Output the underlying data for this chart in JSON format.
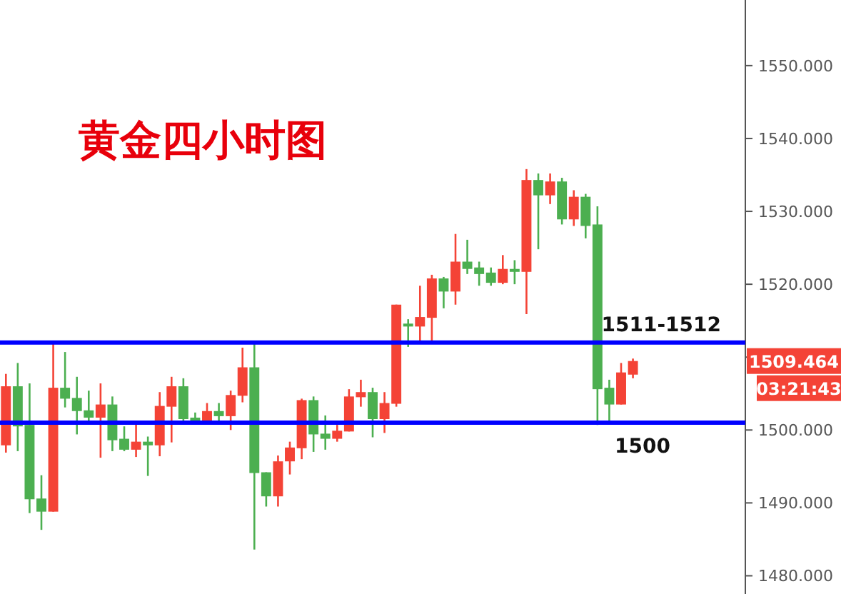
{
  "chart_data": {
    "type": "candlestick",
    "title": "黄金四小时图",
    "categories": [
      null,
      null,
      null,
      null,
      null,
      null,
      null,
      null,
      null,
      null,
      null,
      null,
      null,
      null,
      null,
      null,
      null,
      null,
      null,
      null,
      null,
      null,
      null,
      null,
      null,
      null,
      null,
      null,
      null,
      null,
      null,
      null,
      null,
      null,
      null,
      null,
      null,
      null,
      null,
      null,
      null,
      null,
      null,
      null,
      null,
      null,
      null,
      null,
      null,
      null,
      null,
      null,
      null,
      null,
      null,
      null,
      null,
      null,
      null,
      null,
      null,
      null,
      null
    ],
    "ohlc": [
      [
        1497.9,
        1507.7,
        1496.9,
        1506.0
      ],
      [
        1506.0,
        1509.2,
        1497.1,
        1500.5
      ],
      [
        1500.7,
        1506.4,
        1488.6,
        1490.5
      ],
      [
        1490.6,
        1493.8,
        1486.3,
        1488.8
      ],
      [
        1488.8,
        1512.2,
        1488.8,
        1505.8
      ],
      [
        1505.8,
        1510.7,
        1503.1,
        1504.3
      ],
      [
        1504.4,
        1507.3,
        1499.4,
        1502.6
      ],
      [
        1502.7,
        1505.4,
        1501.1,
        1501.7
      ],
      [
        1501.7,
        1506.4,
        1496.2,
        1503.5
      ],
      [
        1503.5,
        1504.6,
        1497.1,
        1498.6
      ],
      [
        1498.8,
        1500.5,
        1497.1,
        1497.3
      ],
      [
        1497.3,
        1501.0,
        1496.3,
        1498.4
      ],
      [
        1498.4,
        1499.1,
        1493.7,
        1497.9
      ],
      [
        1497.9,
        1505.2,
        1496.4,
        1503.3
      ],
      [
        1503.2,
        1507.3,
        1498.3,
        1506.0
      ],
      [
        1506.0,
        1507.1,
        1501.1,
        1501.5
      ],
      [
        1501.7,
        1502.4,
        1500.9,
        1501.3
      ],
      [
        1501.3,
        1503.7,
        1500.9,
        1502.6
      ],
      [
        1502.6,
        1503.7,
        1500.9,
        1501.9
      ],
      [
        1501.9,
        1505.4,
        1500.0,
        1504.8
      ],
      [
        1504.7,
        1511.3,
        1503.8,
        1508.6
      ],
      [
        1508.6,
        1511.9,
        1483.6,
        1494.1
      ],
      [
        1494.2,
        1494.2,
        1489.5,
        1490.9
      ],
      [
        1490.9,
        1496.5,
        1489.5,
        1495.7
      ],
      [
        1495.7,
        1498.4,
        1493.9,
        1497.6
      ],
      [
        1497.5,
        1504.3,
        1496.0,
        1504.1
      ],
      [
        1504.1,
        1504.6,
        1497.0,
        1499.4
      ],
      [
        1499.5,
        1502.0,
        1497.3,
        1498.8
      ],
      [
        1498.8,
        1500.7,
        1498.4,
        1499.9
      ],
      [
        1499.8,
        1505.6,
        1499.8,
        1504.6
      ],
      [
        1504.5,
        1506.9,
        1503.2,
        1505.2
      ],
      [
        1505.2,
        1505.8,
        1499.0,
        1501.5
      ],
      [
        1501.5,
        1505.2,
        1499.6,
        1503.7
      ],
      [
        1503.6,
        1517.2,
        1503.2,
        1517.2
      ],
      [
        1514.6,
        1515.2,
        1511.4,
        1514.2
      ],
      [
        1514.2,
        1519.8,
        1512.1,
        1515.5
      ],
      [
        1515.4,
        1521.3,
        1511.9,
        1520.8
      ],
      [
        1520.8,
        1521.0,
        1516.7,
        1519.0
      ],
      [
        1519.0,
        1526.9,
        1517.2,
        1523.1
      ],
      [
        1523.1,
        1526.1,
        1521.4,
        1522.1
      ],
      [
        1522.3,
        1523.1,
        1519.8,
        1521.4
      ],
      [
        1521.6,
        1522.3,
        1519.8,
        1520.2
      ],
      [
        1520.2,
        1524.0,
        1520.0,
        1522.1
      ],
      [
        1522.1,
        1523.3,
        1520.0,
        1521.7
      ],
      [
        1521.7,
        1535.8,
        1515.9,
        1534.3
      ],
      [
        1534.3,
        1535.2,
        1524.8,
        1532.2
      ],
      [
        1532.2,
        1535.2,
        1531.0,
        1534.1
      ],
      [
        1534.1,
        1534.6,
        1528.2,
        1528.9
      ],
      [
        1528.9,
        1532.9,
        1528.0,
        1532.0
      ],
      [
        1532.0,
        1532.4,
        1526.3,
        1528.0
      ],
      [
        1528.2,
        1530.7,
        1500.7,
        1505.6
      ],
      [
        1505.8,
        1506.9,
        1501.2,
        1503.5
      ],
      [
        1503.5,
        1509.2,
        1503.5,
        1507.9
      ],
      [
        1507.6,
        1509.8,
        1507.1,
        1509.464
      ],
      null,
      null,
      null,
      null,
      null,
      null,
      null,
      null,
      null
    ],
    "colors": [
      "#f44336",
      "#4caf50",
      "#4caf50",
      "#4caf50",
      "#f44336",
      "#4caf50",
      "#4caf50",
      "#4caf50",
      "#f44336",
      "#4caf50",
      "#4caf50",
      "#f44336",
      "#4caf50",
      "#f44336",
      "#f44336",
      "#4caf50",
      "#4caf50",
      "#f44336",
      "#4caf50",
      "#f44336",
      "#f44336",
      "#4caf50",
      "#4caf50",
      "#f44336",
      "#f44336",
      "#f44336",
      "#4caf50",
      "#4caf50",
      "#f44336",
      "#f44336",
      "#f44336",
      "#4caf50",
      "#f44336",
      "#f44336",
      "#4caf50",
      "#f44336",
      "#f44336",
      "#4caf50",
      "#f44336",
      "#4caf50",
      "#4caf50",
      "#4caf50",
      "#f44336",
      "#4caf50",
      "#f44336",
      "#4caf50",
      "#f44336",
      "#4caf50",
      "#f44336",
      "#4caf50",
      "#4caf50",
      "#4caf50",
      "#f44336",
      "#f44336",
      null,
      null,
      null,
      null,
      null,
      null,
      null,
      null,
      null
    ],
    "ylim": [
      1477.5,
      1559
    ],
    "yticks": [
      {
        "value": 1480,
        "label": "1480.000"
      },
      {
        "value": 1490,
        "label": "1490.000"
      },
      {
        "value": 1500,
        "label": "1500.000"
      },
      {
        "value": 1510,
        "label": null
      },
      {
        "value": 1520,
        "label": "1520.000"
      },
      {
        "value": 1530,
        "label": "1530.000"
      },
      {
        "value": 1540,
        "label": "1540.000"
      },
      {
        "value": 1550,
        "label": "1550.000"
      }
    ],
    "ref_lines": [
      {
        "axis": "y",
        "value": 1512,
        "color": "#0000ff"
      },
      {
        "axis": "y",
        "value": 1501,
        "color": "#0000ff"
      }
    ],
    "annotations": [
      "1511-1512",
      "1500",
      "1509.464",
      "03:21:43"
    ]
  }
}
